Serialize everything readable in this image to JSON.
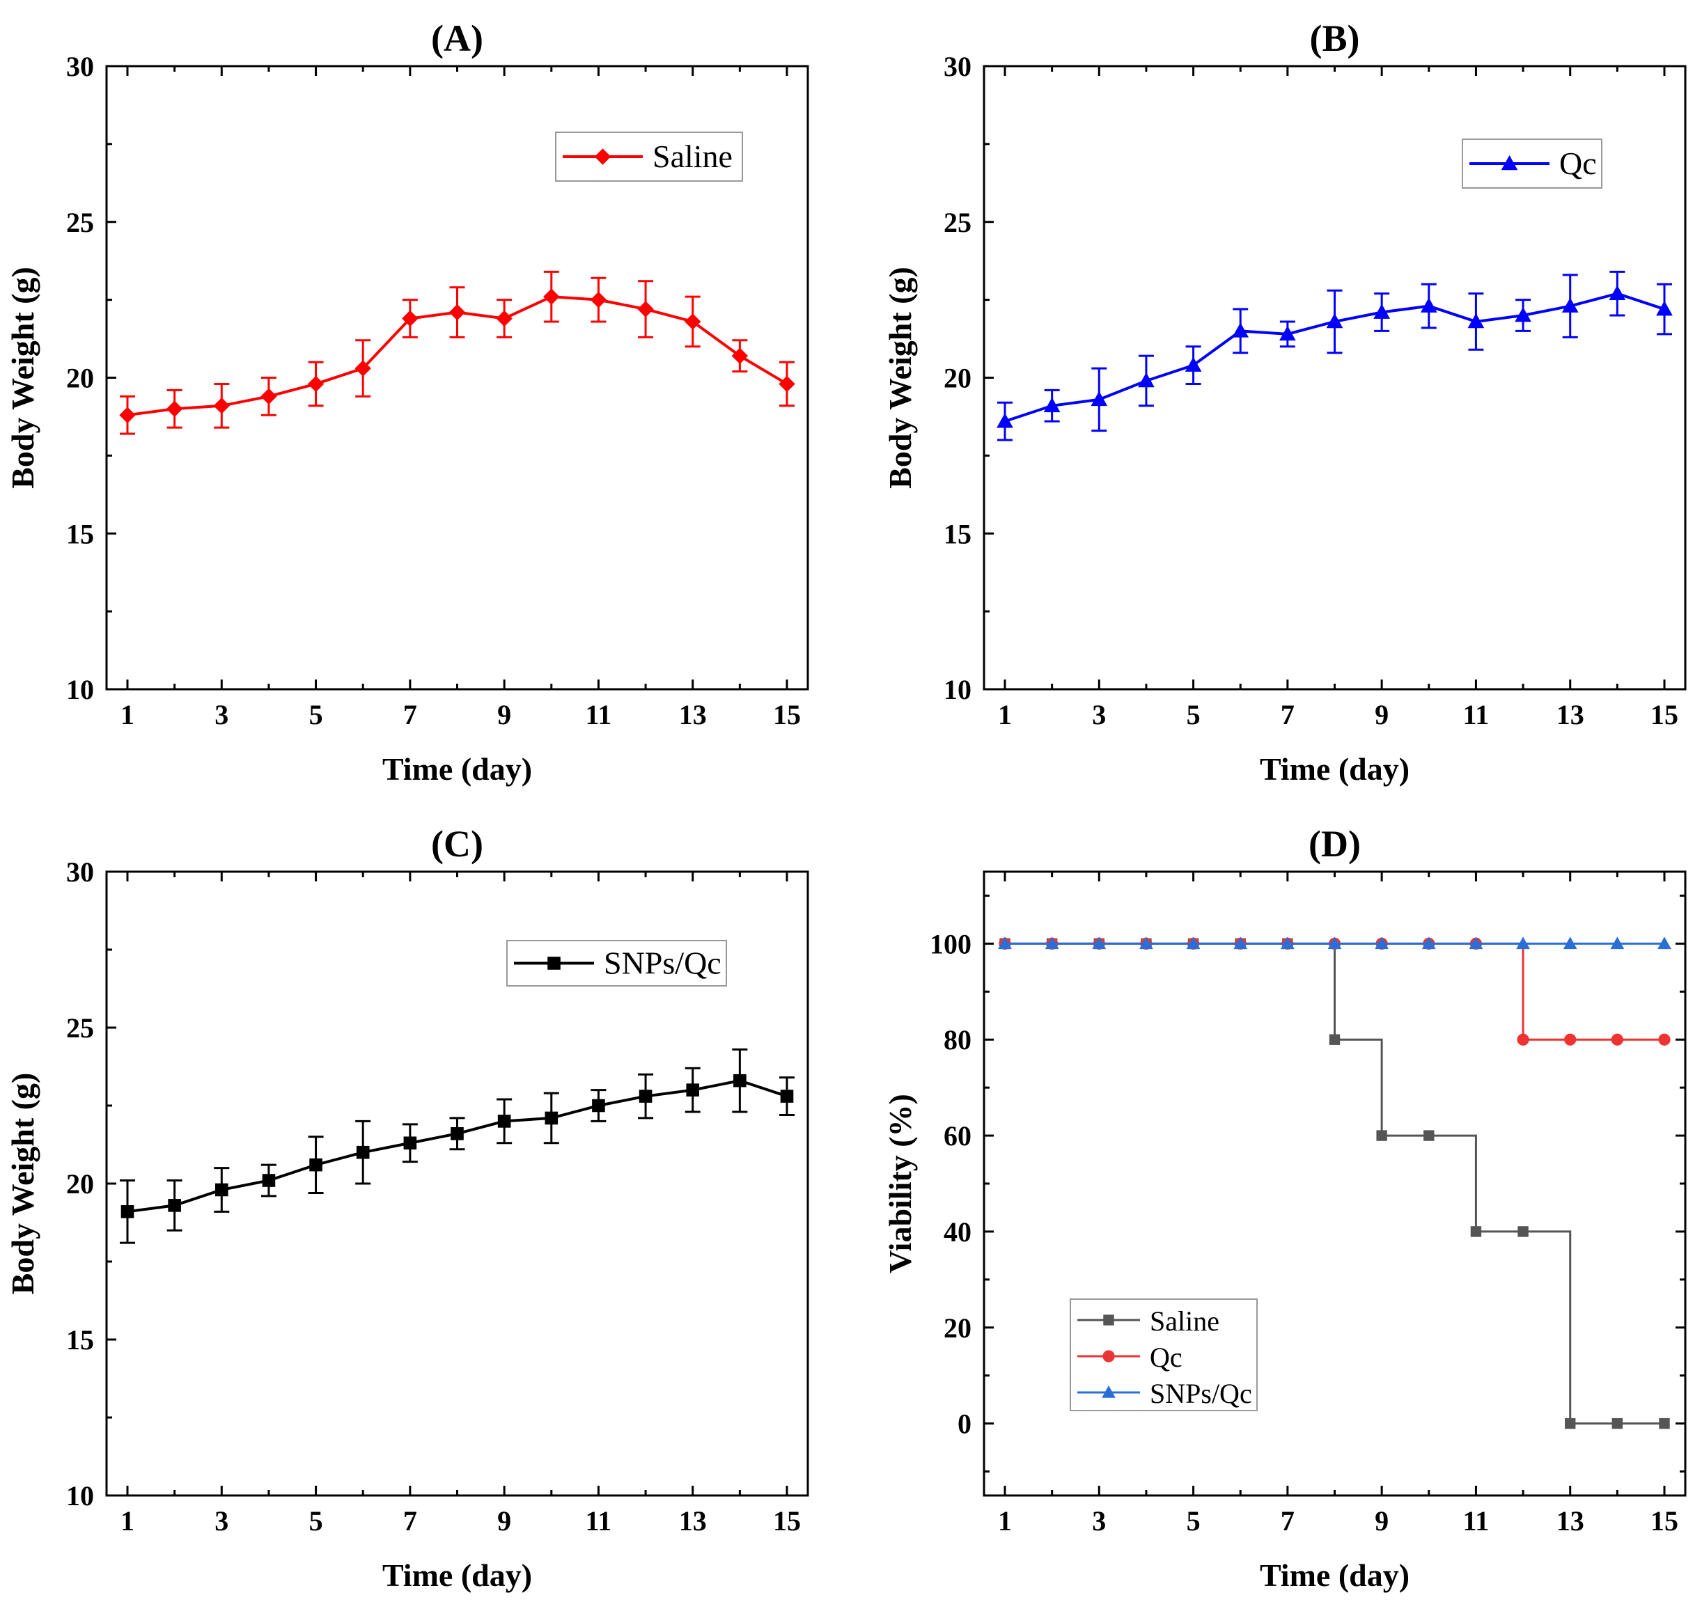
{
  "chart_data": [
    {
      "panel": "A",
      "title": "(A)",
      "type": "line",
      "xlabel": "Time (day)",
      "ylabel": "Body Weight (g)",
      "xlim": [
        1,
        15
      ],
      "ylim": [
        10,
        30
      ],
      "xticks": [
        1,
        3,
        5,
        7,
        9,
        11,
        13,
        15
      ],
      "yticks": [
        10,
        15,
        20,
        25,
        30
      ],
      "legend_position": "top-right",
      "series": [
        {
          "name": "Saline",
          "color": "#ff0000",
          "marker": "diamond",
          "x": [
            1,
            2,
            3,
            4,
            5,
            6,
            7,
            8,
            9,
            10,
            11,
            12,
            13,
            14,
            15
          ],
          "y": [
            18.8,
            19.0,
            19.1,
            19.4,
            19.8,
            20.3,
            21.9,
            22.1,
            21.9,
            22.6,
            22.5,
            22.2,
            21.8,
            20.7,
            19.8
          ],
          "err": [
            0.6,
            0.6,
            0.7,
            0.6,
            0.7,
            0.9,
            0.6,
            0.8,
            0.6,
            0.8,
            0.7,
            0.9,
            0.8,
            0.5,
            0.7
          ]
        }
      ]
    },
    {
      "panel": "B",
      "title": "(B)",
      "type": "line",
      "xlabel": "Time (day)",
      "ylabel": "Body Weight (g)",
      "xlim": [
        1,
        15
      ],
      "ylim": [
        10,
        30
      ],
      "xticks": [
        1,
        3,
        5,
        7,
        9,
        11,
        13,
        15
      ],
      "yticks": [
        10,
        15,
        20,
        25,
        30
      ],
      "legend_position": "top-right",
      "series": [
        {
          "name": "Qc",
          "color": "#0000ff",
          "marker": "triangle",
          "x": [
            1,
            2,
            3,
            4,
            5,
            6,
            7,
            8,
            9,
            10,
            11,
            12,
            13,
            14,
            15
          ],
          "y": [
            18.6,
            19.1,
            19.3,
            19.9,
            20.4,
            21.5,
            21.4,
            21.8,
            22.1,
            22.3,
            21.8,
            22.0,
            22.3,
            22.7,
            22.2
          ],
          "err": [
            0.6,
            0.5,
            1.0,
            0.8,
            0.6,
            0.7,
            0.4,
            1.0,
            0.6,
            0.7,
            0.9,
            0.5,
            1.0,
            0.7,
            0.8
          ]
        }
      ]
    },
    {
      "panel": "C",
      "title": "(C)",
      "type": "line",
      "xlabel": "Time (day)",
      "ylabel": "Body Weight (g)",
      "xlim": [
        1,
        15
      ],
      "ylim": [
        10,
        30
      ],
      "xticks": [
        1,
        3,
        5,
        7,
        9,
        11,
        13,
        15
      ],
      "yticks": [
        10,
        15,
        20,
        25,
        30
      ],
      "legend_position": "top-right",
      "series": [
        {
          "name": "SNPs/Qc",
          "color": "#000000",
          "marker": "square",
          "x": [
            1,
            2,
            3,
            4,
            5,
            6,
            7,
            8,
            9,
            10,
            11,
            12,
            13,
            14,
            15
          ],
          "y": [
            19.1,
            19.3,
            19.8,
            20.1,
            20.6,
            21.0,
            21.3,
            21.6,
            22.0,
            22.1,
            22.5,
            22.8,
            23.0,
            23.3,
            22.8
          ],
          "err": [
            1.0,
            0.8,
            0.7,
            0.5,
            0.9,
            1.0,
            0.6,
            0.5,
            0.7,
            0.8,
            0.5,
            0.7,
            0.7,
            1.0,
            0.6
          ]
        }
      ]
    },
    {
      "panel": "D",
      "title": "(D)",
      "type": "line",
      "step": true,
      "xlabel": "Time (day)",
      "ylabel": "Viability (%)",
      "xlim": [
        1,
        15
      ],
      "ylim": [
        -15,
        115
      ],
      "xticks": [
        1,
        3,
        5,
        7,
        9,
        11,
        13,
        15
      ],
      "yticks": [
        0,
        20,
        40,
        60,
        80,
        100
      ],
      "legend_position": "bottom-left",
      "series": [
        {
          "name": "Saline",
          "color": "#555555",
          "marker": "square",
          "x": [
            1,
            2,
            3,
            4,
            5,
            6,
            7,
            8,
            9,
            10,
            11,
            12,
            13,
            14,
            15
          ],
          "y": [
            100,
            100,
            100,
            100,
            100,
            100,
            100,
            80,
            60,
            60,
            40,
            40,
            0,
            0,
            0
          ]
        },
        {
          "name": "Qc",
          "color": "#ee3333",
          "marker": "circle",
          "x": [
            1,
            2,
            3,
            4,
            5,
            6,
            7,
            8,
            9,
            10,
            11,
            12,
            13,
            14,
            15
          ],
          "y": [
            100,
            100,
            100,
            100,
            100,
            100,
            100,
            100,
            100,
            100,
            100,
            80,
            80,
            80,
            80
          ]
        },
        {
          "name": "SNPs/Qc",
          "color": "#2a6fd6",
          "marker": "triangle",
          "x": [
            1,
            2,
            3,
            4,
            5,
            6,
            7,
            8,
            9,
            10,
            11,
            12,
            13,
            14,
            15
          ],
          "y": [
            100,
            100,
            100,
            100,
            100,
            100,
            100,
            100,
            100,
            100,
            100,
            100,
            100,
            100,
            100
          ]
        }
      ]
    }
  ]
}
